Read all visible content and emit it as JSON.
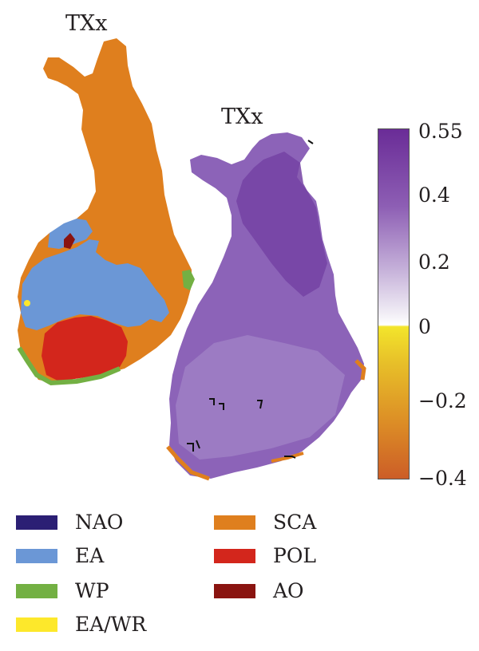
{
  "maps": {
    "left_title": "TXx",
    "right_title": "TXx"
  },
  "colorbar": {
    "ticks": [
      "0.55",
      "0.4",
      "0.2",
      "0",
      "−0.2",
      "−0.4"
    ],
    "values": [
      0.55,
      0.4,
      0.2,
      0,
      -0.2,
      -0.4
    ],
    "range": [
      -0.4,
      0.55
    ],
    "colors": {
      "high": "#6a2c97",
      "mid_high": "#c5b0d9",
      "zero": "#ffffff",
      "zero_low": "#f3e52b",
      "low": "#cc5d27"
    }
  },
  "legend": {
    "items": [
      {
        "label": "NAO",
        "color": "#2b1f74"
      },
      {
        "label": "EA",
        "color": "#6b97d6"
      },
      {
        "label": "WP",
        "color": "#73b043"
      },
      {
        "label": "EA/WR",
        "color": "#fde82b"
      },
      {
        "label": "SCA",
        "color": "#df7f1e"
      },
      {
        "label": "POL",
        "color": "#d3261c"
      },
      {
        "label": "AO",
        "color": "#8a1410"
      }
    ]
  }
}
